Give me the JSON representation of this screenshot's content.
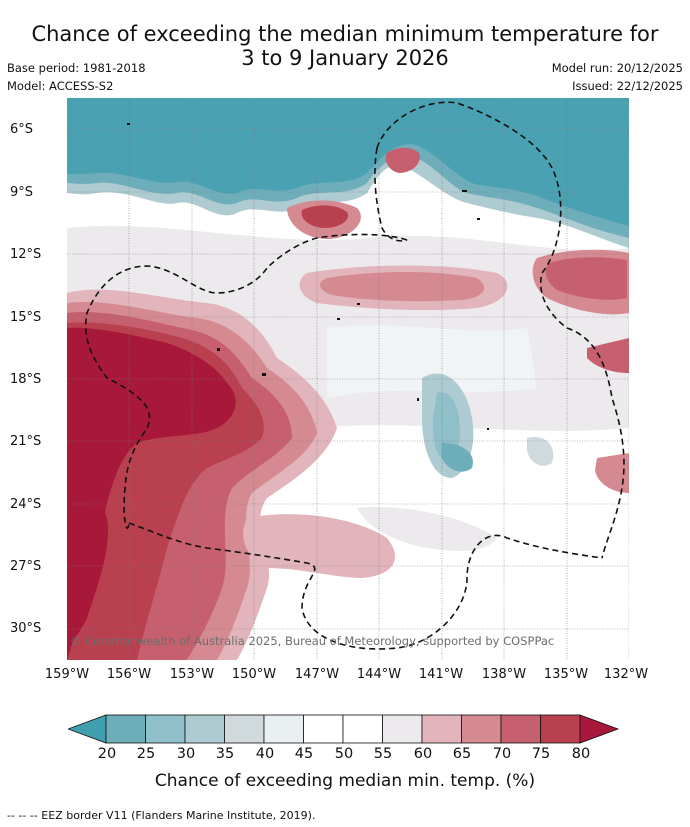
{
  "title": {
    "line1": "Chance of exceeding the median minimum temperature for",
    "line2": "3 to 9 January 2026"
  },
  "meta": {
    "base_period": "Base period: 1981-2018",
    "model": "Model: ACCESS-S2",
    "model_run": "Model run: 20/12/2025",
    "issued": "Issued: 22/12/2025"
  },
  "map": {
    "lat_labels": [
      "6°S",
      "9°S",
      "12°S",
      "15°S",
      "18°S",
      "21°S",
      "24°S",
      "27°S",
      "30°S"
    ],
    "lon_labels": [
      "159°W",
      "156°W",
      "153°W",
      "150°W",
      "147°W",
      "144°W",
      "141°W",
      "138°W",
      "135°W",
      "132°W"
    ],
    "lat_range": [
      -31.5,
      -4.5
    ],
    "lon_range": [
      -159,
      -132
    ],
    "copyright": "© Commonwealth of Australia 2025, Bureau of Meteorology, supported by COSPPac"
  },
  "colorbar": {
    "ticks": [
      "20",
      "25",
      "30",
      "35",
      "40",
      "45",
      "50",
      "55",
      "60",
      "65",
      "70",
      "75",
      "80"
    ],
    "title": "Chance of exceeding median min. temp. (%)",
    "colors": [
      "#3f9fae",
      "#6eaebb",
      "#8fbfc9",
      "#adcbd0",
      "#d0dadd",
      "#eaf0f2",
      "#ffffff",
      "#ffffff",
      "#eceaec",
      "#e2b5bc",
      "#d58991",
      "#c7606e",
      "#b9404f",
      "#a8183a"
    ]
  },
  "footnote": "--  --  -- EEZ border V11 (Flanders Marine Institute, 2019)."
}
